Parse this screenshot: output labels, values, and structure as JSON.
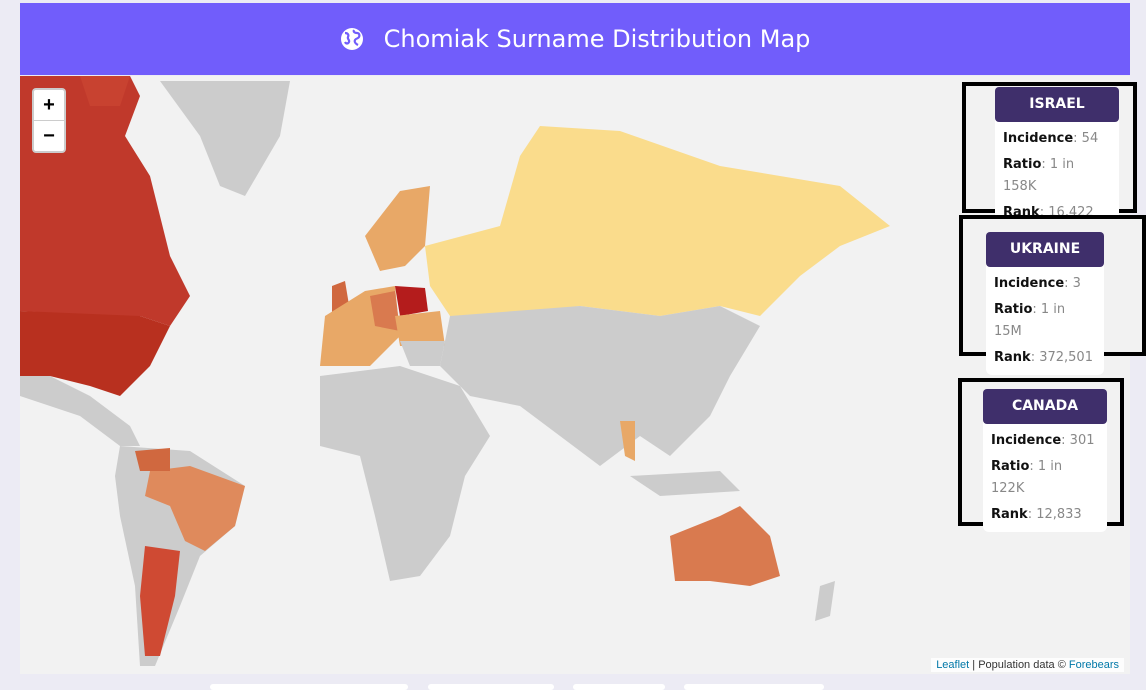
{
  "header": {
    "title": "Chomiak Surname Distribution Map",
    "icon": "globe-icon"
  },
  "map": {
    "zoom_in": "+",
    "zoom_out": "−",
    "attribution": {
      "leaflet": "Leaflet",
      "separator": " | Population data © ",
      "source": "Forebears"
    },
    "colors": {
      "highest": "#b41c1c",
      "high": "#c0392b",
      "mid": "#d97a4f",
      "low": "#e8a867",
      "lowest": "#fadc8c",
      "none": "#cccccc"
    }
  },
  "cards": [
    {
      "country": "ISRAEL",
      "incidence_label": "Incidence",
      "incidence": "54",
      "ratio_label": "Ratio",
      "ratio": "1 in 158K",
      "rank_label": "Rank",
      "rank": "16,422"
    },
    {
      "country": "UKRAINE",
      "incidence_label": "Incidence",
      "incidence": "3",
      "ratio_label": "Ratio",
      "ratio": "1 in 15M",
      "rank_label": "Rank",
      "rank": "372,501"
    },
    {
      "country": "CANADA",
      "incidence_label": "Incidence",
      "incidence": "301",
      "ratio_label": "Ratio",
      "ratio": "1 in 122K",
      "rank_label": "Rank",
      "rank": "12,833"
    }
  ]
}
